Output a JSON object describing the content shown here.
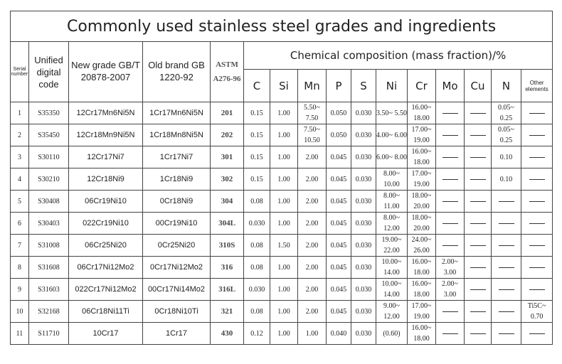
{
  "title": "Commonly used stainless steel grades and ingredients",
  "headers": {
    "serial": "Serial number",
    "code": "Unified digital code",
    "new": "New grade GB/T 20878-2007",
    "old": "Old brand GB 1220-92",
    "astm": "ASTM A276-96",
    "chem": "Chemical composition (mass fraction)/%",
    "elements": [
      "C",
      "Si",
      "Mn",
      "P",
      "S",
      "Ni",
      "Cr",
      "Mo",
      "Cu",
      "N",
      "Other elements"
    ]
  },
  "rows": [
    [
      "1",
      "S35350",
      "12Cr17Mn6Ni5N",
      "1Cr17Mn6Ni5N",
      "201",
      "0.15",
      "1.00",
      "5.50~ 7.50",
      "0.050",
      "0.030",
      "3.50~ 5.50",
      "16.00~ 18.00",
      "—",
      "—",
      "0.05~ 0.25",
      "—"
    ],
    [
      "2",
      "S35450",
      "12Cr18Mn9Ni5N",
      "1Cr18Mn8Ni5N",
      "202",
      "0.15",
      "1.00",
      "7.50~ 10.50",
      "0.050",
      "0.030",
      "4.00~ 6.00",
      "17.00~ 19.00",
      "—",
      "—",
      "0.05~ 0.25",
      "—"
    ],
    [
      "3",
      "S30110",
      "12Cr17Ni7",
      "1Cr17Ni7",
      "301",
      "0.15",
      "1.00",
      "2.00",
      "0.045",
      "0.030",
      "6.00~ 8.00",
      "16.00~ 18.00",
      "—",
      "—",
      "0.10",
      "—"
    ],
    [
      "4",
      "S30210",
      "12Cr18Ni9",
      "1Cr18Ni9",
      "302",
      "0.15",
      "1.00",
      "2.00",
      "0.045",
      "0.030",
      "8.00~ 10.00",
      "17.00~ 19.00",
      "—",
      "—",
      "0.10",
      "—"
    ],
    [
      "5",
      "S30408",
      "06Cr19Ni10",
      "0Cr18Ni9",
      "304",
      "0.08",
      "1.00",
      "2.00",
      "0.045",
      "0.030",
      "8.00~ 11.00",
      "18.00~ 20.00",
      "—",
      "—",
      "—",
      "—"
    ],
    [
      "6",
      "S30403",
      "022Cr19Ni10",
      "00Cr19Ni10",
      "304L",
      "0.030",
      "1.00",
      "2.00",
      "0.045",
      "0.030",
      "8.00~ 12.00",
      "18.00~ 20.00",
      "—",
      "—",
      "—",
      "—"
    ],
    [
      "7",
      "S31008",
      "06Cr25Ni20",
      "0Cr25Ni20",
      "310S",
      "0.08",
      "1.50",
      "2.00",
      "0.045",
      "0.030",
      "19.00~ 22.00",
      "24.00~ 26.00",
      "—",
      "—",
      "—",
      "—"
    ],
    [
      "8",
      "S31608",
      "06Cr17Ni12Mo2",
      "0Cr17Ni12Mo2",
      "316",
      "0.08",
      "1.00",
      "2.00",
      "0.045",
      "0.030",
      "10.00~ 14.00",
      "16.00~ 18.00",
      "2.00~ 3.00",
      "—",
      "—",
      "—"
    ],
    [
      "9",
      "S31603",
      "022Cr17Ni12Mo2",
      "00Cr17Ni14Mo2",
      "316L",
      "0.030",
      "1.00",
      "2.00",
      "0.045",
      "0.030",
      "10.00~ 14.00",
      "16.00~ 18.00",
      "2.00~ 3.00",
      "—",
      "—",
      "—"
    ],
    [
      "10",
      "S32168",
      "06Cr18Ni11Ti",
      "0Cr18Ni10Ti",
      "321",
      "0.08",
      "1.00",
      "2.00",
      "0.045",
      "0.030",
      "9.00~ 12.00",
      "17.00~ 19.00",
      "—",
      "—",
      "—",
      "Ti5C~ 0.70"
    ],
    [
      "11",
      "S11710",
      "10Cr17",
      "1Cr17",
      "430",
      "0.12",
      "1.00",
      "1.00",
      "0.040",
      "0.030",
      "(0.60)",
      "16.00~ 18.00",
      "—",
      "—",
      "—",
      "—"
    ]
  ]
}
